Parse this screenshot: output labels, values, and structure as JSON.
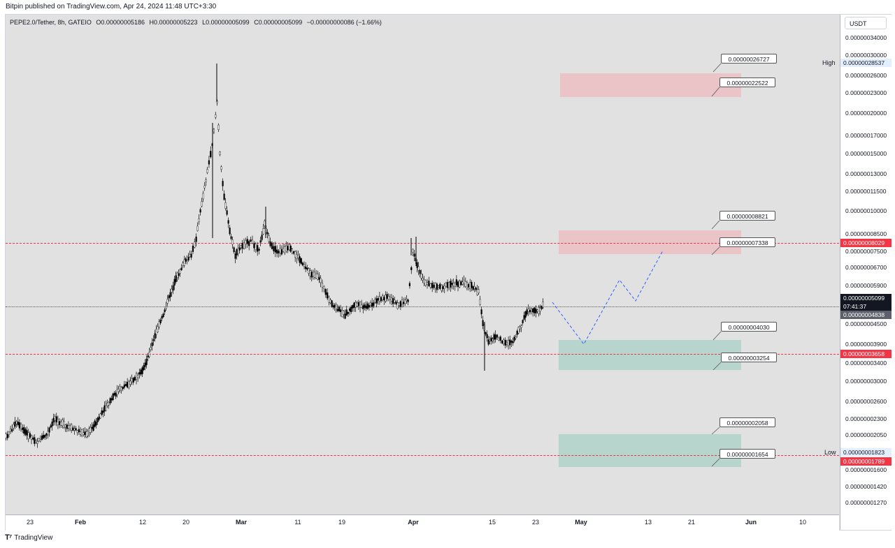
{
  "header": {
    "publisher_text": "Bitpin published on TradingView.com, Apr 24, 2024 11:48 UTC+3:30"
  },
  "legend": {
    "symbol": "PEPE2.0/Tether, 8h, GATEIO",
    "open": "O0.00000005186",
    "high": "H0.00000005223",
    "low": "L0.00000005099",
    "close": "C0.00000005099",
    "change": "−0.00000000086 (−1.66%)"
  },
  "price_axis": {
    "currency": "USDT",
    "ticks": [
      {
        "label": "0.00000034000",
        "value": 3.4e-07
      },
      {
        "label": "0.00000030000",
        "value": 3e-07
      },
      {
        "label": "0.00000026000",
        "value": 2.6e-07
      },
      {
        "label": "0.00000023000",
        "value": 2.3e-07
      },
      {
        "label": "0.00000020000",
        "value": 2e-07
      },
      {
        "label": "0.00000017000",
        "value": 1.7e-07
      },
      {
        "label": "0.00000015000",
        "value": 1.5e-07
      },
      {
        "label": "0.00000013000",
        "value": 1.3e-07
      },
      {
        "label": "0.00000011500",
        "value": 1.15e-07
      },
      {
        "label": "0.00000010000",
        "value": 1e-07
      },
      {
        "label": "0.00000008500",
        "value": 8.5e-08
      },
      {
        "label": "0.00000007500",
        "value": 7.5e-08
      },
      {
        "label": "0.00000006700",
        "value": 6.7e-08
      },
      {
        "label": "0.00000005900",
        "value": 5.9e-08
      },
      {
        "label": "0.00000004500",
        "value": 4.5e-08
      },
      {
        "label": "0.00000003900",
        "value": 3.9e-08
      },
      {
        "label": "0.00000003400",
        "value": 3.4e-08
      },
      {
        "label": "0.00000003000",
        "value": 3e-08
      },
      {
        "label": "0.00000002600",
        "value": 2.6e-08
      },
      {
        "label": "0.00000002300",
        "value": 2.3e-08
      },
      {
        "label": "0.00000002050",
        "value": 2.05e-08
      },
      {
        "label": "0.00000001600",
        "value": 1.6e-08
      },
      {
        "label": "0.00000001420",
        "value": 1.42e-08
      },
      {
        "label": "0.00000001270",
        "value": 1.27e-08
      }
    ],
    "high_label": "High",
    "high_value": "0.00000028537",
    "low_label": "Low",
    "low_value": "0.00000001823",
    "red_level_1": "0.00000008029",
    "red_level_2": "0.00000003658",
    "red_level_3": "0.00000001789",
    "current_price": "0.00000005099",
    "countdown": "07:41:37",
    "gray_price": "0.00000004838",
    "colors": {
      "red_tag": "#f23645",
      "current_tag": "#131722",
      "gray_tag": "#5d606b",
      "high_low_tag": "#e3effd"
    }
  },
  "time_axis": {
    "labels": [
      "23",
      "Feb",
      "12",
      "20",
      "Mar",
      "11",
      "19",
      "Apr",
      "15",
      "23",
      "May",
      "13",
      "21",
      "Jun",
      "10"
    ]
  },
  "callouts": {
    "c1": "0.00000026727",
    "c2": "0.00000022522",
    "c3": "0.00000008821",
    "c4": "0.00000007338",
    "c5": "0.00000004030",
    "c6": "0.00000003254",
    "c7": "0.00000002058",
    "c8": "0.00000001654"
  },
  "zones": {
    "red_color": "#f2b8be",
    "green_color": "#9fd3c7"
  },
  "footer": {
    "brand": "TradingView"
  }
}
